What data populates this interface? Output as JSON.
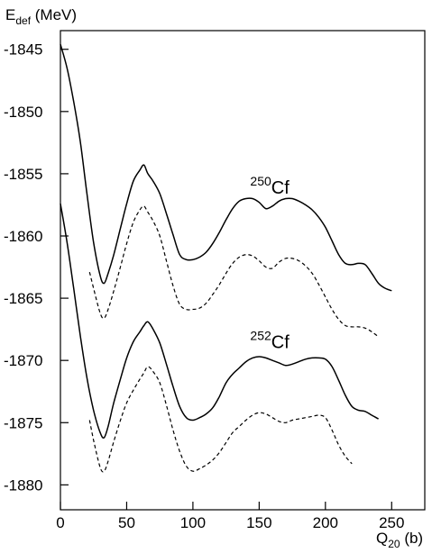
{
  "chart_data": {
    "type": "line",
    "xlabel": {
      "main": "Q",
      "sub": "20",
      "unit": " (b)"
    },
    "ylabel": {
      "main": "E",
      "sub": "def",
      "unit": " (MeV)"
    },
    "xlim": [
      0,
      275
    ],
    "ylim": [
      -1882,
      -1843.5
    ],
    "x_ticks": [
      "0",
      "50",
      "100",
      "150",
      "200",
      "250"
    ],
    "y_ticks": [
      "-1845",
      "-1850",
      "-1855",
      "-1860",
      "-1865",
      "-1870",
      "-1875",
      "-1880"
    ],
    "grid": false,
    "annotations": [
      {
        "mass": "250",
        "element": "Cf",
        "x": 158,
        "y": -1856.6
      },
      {
        "mass": "252",
        "element": "Cf",
        "x": 158,
        "y": -1869.0
      }
    ],
    "series": [
      {
        "style": "solid",
        "nucleus": "250Cf",
        "x": [
          0,
          5,
          10,
          15,
          20,
          25,
          30,
          33,
          36,
          40,
          45,
          50,
          55,
          60,
          63,
          66,
          70,
          75,
          80,
          85,
          90,
          95,
          100,
          105,
          110,
          115,
          120,
          125,
          130,
          135,
          140,
          145,
          150,
          155,
          160,
          165,
          170,
          175,
          180,
          185,
          190,
          195,
          200,
          205,
          210,
          215,
          220,
          225,
          230,
          235,
          240,
          245,
          250
        ],
        "y": [
          -1844.6,
          -1846.5,
          -1849.2,
          -1852.4,
          -1856.6,
          -1860.5,
          -1863.2,
          -1863.8,
          -1863.0,
          -1861.6,
          -1859.5,
          -1857.4,
          -1855.6,
          -1854.7,
          -1854.3,
          -1855.0,
          -1855.6,
          -1856.6,
          -1858.2,
          -1859.9,
          -1861.5,
          -1861.9,
          -1861.9,
          -1861.7,
          -1861.3,
          -1860.6,
          -1859.7,
          -1858.7,
          -1857.8,
          -1857.2,
          -1857.0,
          -1857.0,
          -1857.3,
          -1857.8,
          -1857.6,
          -1857.2,
          -1857.0,
          -1857.0,
          -1857.2,
          -1857.5,
          -1857.9,
          -1858.5,
          -1859.3,
          -1860.4,
          -1861.5,
          -1862.2,
          -1862.3,
          -1862.2,
          -1862.3,
          -1863.0,
          -1863.8,
          -1864.2,
          -1864.4
        ]
      },
      {
        "style": "dashed",
        "nucleus": "250Cf",
        "x": [
          22,
          25,
          30,
          33,
          36,
          40,
          45,
          50,
          55,
          60,
          63,
          66,
          70,
          75,
          80,
          85,
          90,
          95,
          100,
          105,
          110,
          115,
          120,
          125,
          130,
          135,
          140,
          145,
          150,
          155,
          160,
          165,
          170,
          175,
          180,
          185,
          190,
          195,
          200,
          205,
          210,
          215,
          220,
          225,
          230,
          235,
          240
        ],
        "y": [
          -1862.9,
          -1864.2,
          -1866.2,
          -1866.6,
          -1865.9,
          -1864.5,
          -1862.6,
          -1860.6,
          -1858.9,
          -1857.9,
          -1857.6,
          -1858.1,
          -1858.8,
          -1860.0,
          -1862.0,
          -1864.0,
          -1865.5,
          -1865.9,
          -1865.9,
          -1865.8,
          -1865.4,
          -1864.7,
          -1863.9,
          -1863.0,
          -1862.2,
          -1861.7,
          -1861.5,
          -1861.6,
          -1862.0,
          -1862.5,
          -1862.6,
          -1862.1,
          -1861.8,
          -1861.8,
          -1862.0,
          -1862.4,
          -1863.0,
          -1863.9,
          -1864.9,
          -1865.9,
          -1866.7,
          -1867.2,
          -1867.3,
          -1867.3,
          -1867.4,
          -1867.7,
          -1868.1
        ]
      },
      {
        "style": "solid",
        "nucleus": "252Cf",
        "x": [
          0,
          5,
          10,
          15,
          20,
          25,
          30,
          33,
          36,
          40,
          45,
          50,
          55,
          60,
          63,
          66,
          70,
          75,
          80,
          85,
          90,
          95,
          100,
          105,
          110,
          115,
          120,
          125,
          130,
          135,
          140,
          145,
          150,
          155,
          160,
          165,
          170,
          175,
          180,
          185,
          190,
          195,
          200,
          205,
          210,
          215,
          220,
          225,
          230,
          235,
          240
        ],
        "y": [
          -1857.4,
          -1860.5,
          -1864.2,
          -1868.0,
          -1871.4,
          -1874.0,
          -1875.8,
          -1876.2,
          -1875.3,
          -1873.5,
          -1871.6,
          -1869.8,
          -1868.5,
          -1867.7,
          -1867.2,
          -1866.9,
          -1867.5,
          -1868.6,
          -1870.3,
          -1872.1,
          -1873.7,
          -1874.6,
          -1874.8,
          -1874.6,
          -1874.3,
          -1873.8,
          -1872.9,
          -1871.8,
          -1871.1,
          -1870.6,
          -1870.1,
          -1869.8,
          -1869.7,
          -1869.8,
          -1870.0,
          -1870.2,
          -1870.4,
          -1870.3,
          -1870.1,
          -1869.9,
          -1869.8,
          -1869.8,
          -1869.9,
          -1870.5,
          -1871.6,
          -1872.8,
          -1873.7,
          -1874.0,
          -1874.1,
          -1874.4,
          -1874.7
        ]
      },
      {
        "style": "dashed",
        "nucleus": "252Cf",
        "x": [
          22,
          25,
          30,
          33,
          36,
          40,
          45,
          50,
          55,
          60,
          63,
          66,
          70,
          75,
          80,
          85,
          90,
          95,
          100,
          105,
          110,
          115,
          120,
          125,
          130,
          135,
          140,
          145,
          150,
          155,
          160,
          165,
          170,
          175,
          180,
          185,
          190,
          195,
          200,
          205,
          210,
          215,
          220
        ],
        "y": [
          -1874.8,
          -1876.4,
          -1878.6,
          -1878.9,
          -1878.1,
          -1876.6,
          -1874.9,
          -1873.4,
          -1872.4,
          -1871.5,
          -1871.0,
          -1870.5,
          -1870.9,
          -1871.8,
          -1873.6,
          -1875.6,
          -1877.3,
          -1878.5,
          -1878.9,
          -1878.7,
          -1878.4,
          -1878.0,
          -1877.4,
          -1876.6,
          -1875.8,
          -1875.3,
          -1874.8,
          -1874.4,
          -1874.2,
          -1874.3,
          -1874.6,
          -1874.9,
          -1875.0,
          -1874.8,
          -1874.7,
          -1874.6,
          -1874.5,
          -1874.4,
          -1874.6,
          -1875.6,
          -1876.8,
          -1877.7,
          -1878.3
        ]
      }
    ]
  }
}
